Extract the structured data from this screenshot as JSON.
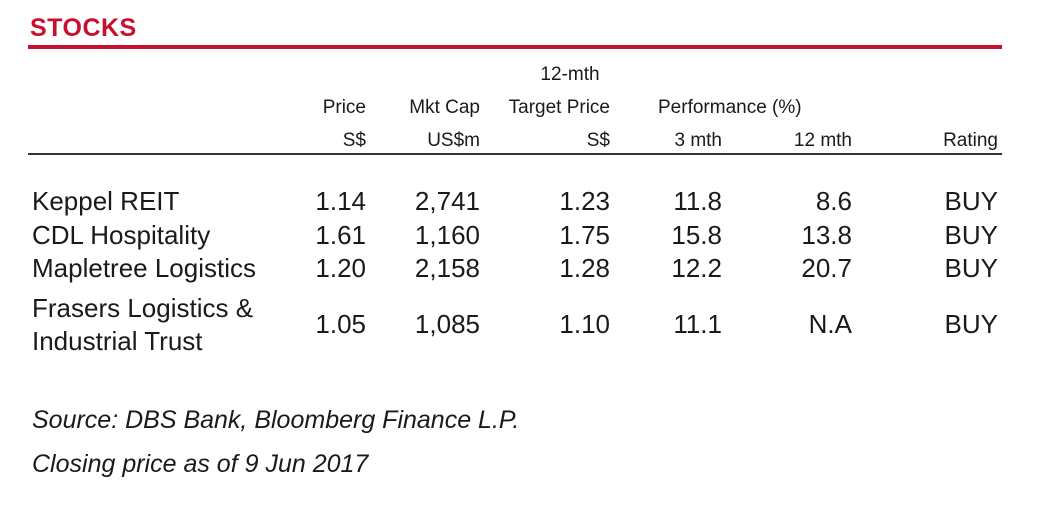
{
  "title": "STOCKS",
  "colors": {
    "accent": "#c8102e"
  },
  "headers": {
    "price": "Price",
    "price_unit": "S$",
    "mktcap": "Mkt Cap",
    "mktcap_unit": "US$m",
    "target_top": "12-mth",
    "target": "Target Price",
    "target_unit": "S$",
    "performance": "Performance (%)",
    "perf_3m": "3 mth",
    "perf_12m": "12 mth",
    "rating": "Rating"
  },
  "rows": [
    {
      "name": "Keppel REIT",
      "price": "1.14",
      "mktcap": "2,741",
      "target": "1.23",
      "p3": "11.8",
      "p12": "8.6",
      "rating": "BUY"
    },
    {
      "name": "CDL Hospitality",
      "price": "1.61",
      "mktcap": "1,160",
      "target": "1.75",
      "p3": "15.8",
      "p12": "13.8",
      "rating": "BUY"
    },
    {
      "name": "Mapletree Logistics",
      "price": "1.20",
      "mktcap": "2,158",
      "target": "1.28",
      "p3": "12.2",
      "p12": "20.7",
      "rating": "BUY"
    },
    {
      "name_line1": "Frasers Logistics &",
      "name_line2": "Industrial Trust",
      "price": "1.05",
      "mktcap": "1,085",
      "target": "1.10",
      "p3": "11.1",
      "p12": "N.A",
      "rating": "BUY"
    }
  ],
  "notes": {
    "source": "Source: DBS Bank, Bloomberg Finance L.P.",
    "closing": "Closing price as of  9 Jun 2017"
  }
}
